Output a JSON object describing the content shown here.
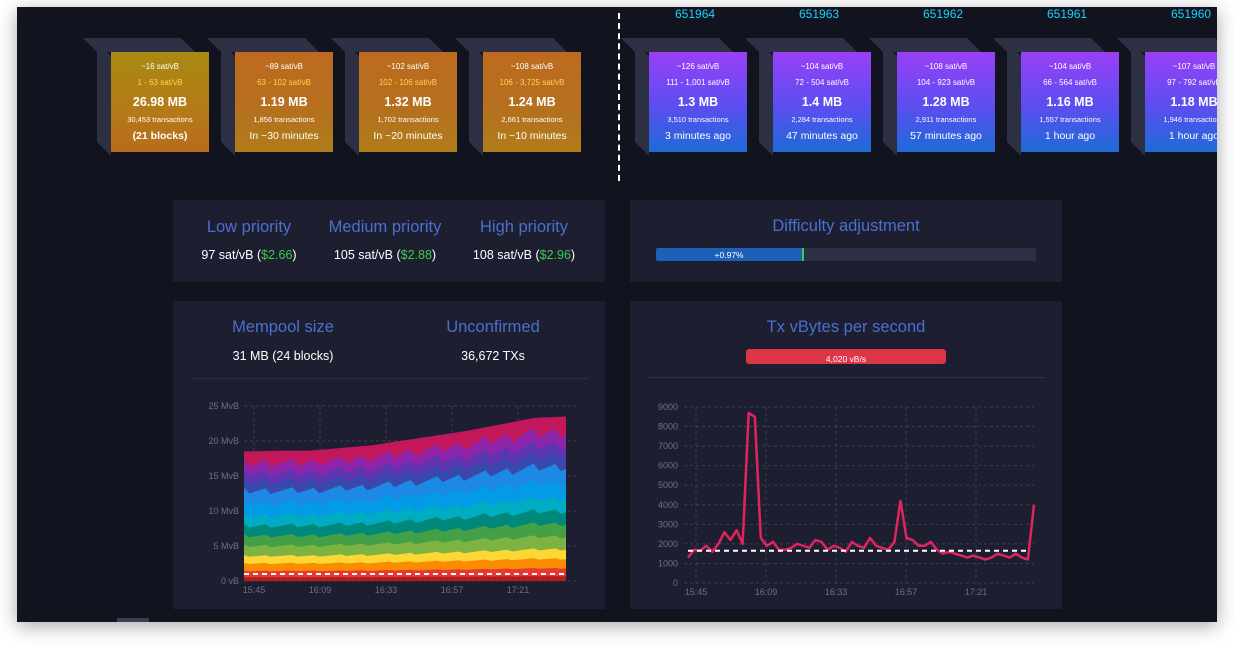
{
  "mempool_blocks": [
    {
      "fee": "~16 sat/vB",
      "range": "1 - 63 sat/vB",
      "size": "26.98 MB",
      "txs": "30,453 transactions",
      "eta": "(21 blocks)"
    },
    {
      "fee": "~89 sat/vB",
      "range": "63 - 102 sat/vB",
      "size": "1.19 MB",
      "txs": "1,856 transactions",
      "eta": "In ~30 minutes"
    },
    {
      "fee": "~102 sat/vB",
      "range": "102 - 106 sat/vB",
      "size": "1.32 MB",
      "txs": "1,702 transactions",
      "eta": "In ~20 minutes"
    },
    {
      "fee": "~108 sat/vB",
      "range": "106 - 3,725 sat/vB",
      "size": "1.24 MB",
      "txs": "2,661 transactions",
      "eta": "In ~10 minutes"
    }
  ],
  "confirmed_blocks": [
    {
      "height": "651964",
      "fee": "~126 sat/vB",
      "range": "111 - 1,001 sat/vB",
      "size": "1.3 MB",
      "txs": "3,510 transactions",
      "ago": "3 minutes ago"
    },
    {
      "height": "651963",
      "fee": "~104 sat/vB",
      "range": "72 - 504 sat/vB",
      "size": "1.4 MB",
      "txs": "2,284 transactions",
      "ago": "47 minutes ago"
    },
    {
      "height": "651962",
      "fee": "~108 sat/vB",
      "range": "104 - 923 sat/vB",
      "size": "1.28 MB",
      "txs": "2,911 transactions",
      "ago": "57 minutes ago"
    },
    {
      "height": "651961",
      "fee": "~104 sat/vB",
      "range": "66 - 564 sat/vB",
      "size": "1.16 MB",
      "txs": "1,557 transactions",
      "ago": "1 hour ago"
    },
    {
      "height": "651960",
      "fee": "~107 sat/vB",
      "range": "97 - 792 sat/vB",
      "size": "1.18 MB",
      "txs": "1,946 transactions",
      "ago": "1 hour ago"
    }
  ],
  "fees": {
    "low": {
      "label": "Low priority",
      "rate": "97 sat/vB (",
      "usd": "$2.66",
      "close": ")"
    },
    "med": {
      "label": "Medium priority",
      "rate": "105 sat/vB (",
      "usd": "$2.88",
      "close": ")"
    },
    "high": {
      "label": "High priority",
      "rate": "108 sat/vB (",
      "usd": "$2.96",
      "close": ")"
    }
  },
  "difficulty": {
    "title": "Difficulty adjustment",
    "change": "+0.97%",
    "progress": 0.39
  },
  "mempool": {
    "size_label": "Mempool size",
    "size_value": "31 MB (24 blocks)",
    "unconf_label": "Unconfirmed",
    "unconf_value": "36,672 TXs"
  },
  "txrate": {
    "title": "Tx vBytes per second",
    "badge": "4,020 vB/s"
  },
  "colors": {
    "accent_title": "#4a6fcf",
    "usd_green": "#3bcc49",
    "badge_red": "#dc3545",
    "difficulty_blue": "#1e5fb7",
    "height_cyan": "#1bd2ff"
  },
  "chart_data": [
    {
      "type": "area",
      "title": "",
      "y_ticks": [
        "25 MvB",
        "20 MvB",
        "15 MvB",
        "10 MvB",
        "5 MvB",
        "0 vB"
      ],
      "x_ticks": [
        "15:45",
        "16:09",
        "16:33",
        "16:57",
        "17:21"
      ],
      "ylim": [
        0,
        25
      ],
      "x": [
        0,
        10,
        20,
        30,
        40,
        50,
        60,
        70,
        80,
        90,
        100
      ],
      "total_mvb": [
        18.5,
        18.6,
        18.6,
        19.0,
        19.4,
        20.1,
        20.8,
        21.5,
        22.4,
        23.3,
        23.5
      ],
      "series_colors": [
        "#c2185b",
        "#8e24aa",
        "#5e35b1",
        "#3949ab",
        "#1e88e5",
        "#039be5",
        "#00acc1",
        "#00897b",
        "#43a047",
        "#7cb342",
        "#fdd835",
        "#fb8c00",
        "#e53935",
        "#b71c1c"
      ]
    },
    {
      "type": "line",
      "title": "",
      "y_ticks": [
        "9000",
        "8000",
        "7000",
        "6000",
        "5000",
        "4000",
        "3000",
        "2000",
        "1000",
        "0"
      ],
      "x_ticks": [
        "15:45",
        "16:09",
        "16:33",
        "16:57",
        "17:21"
      ],
      "ylim": [
        0,
        9000
      ],
      "values": [
        1300,
        1700,
        1650,
        1900,
        1600,
        2000,
        2600,
        2200,
        2700,
        2000,
        8700,
        8500,
        2300,
        1900,
        2100,
        1700,
        1700,
        1800,
        2000,
        1900,
        1800,
        2200,
        2100,
        1700,
        1900,
        1800,
        1600,
        2100,
        1900,
        1800,
        2300,
        1900,
        1800,
        1700,
        2100,
        4200,
        2300,
        2200,
        1900,
        1900,
        2100,
        1700,
        1500,
        1600,
        1500,
        1400,
        1300,
        1400,
        1300,
        1200,
        1300,
        1500,
        1400,
        1300,
        1500,
        1300,
        1200,
        4000
      ],
      "average": 1650,
      "line_color": "#e0245e"
    }
  ]
}
